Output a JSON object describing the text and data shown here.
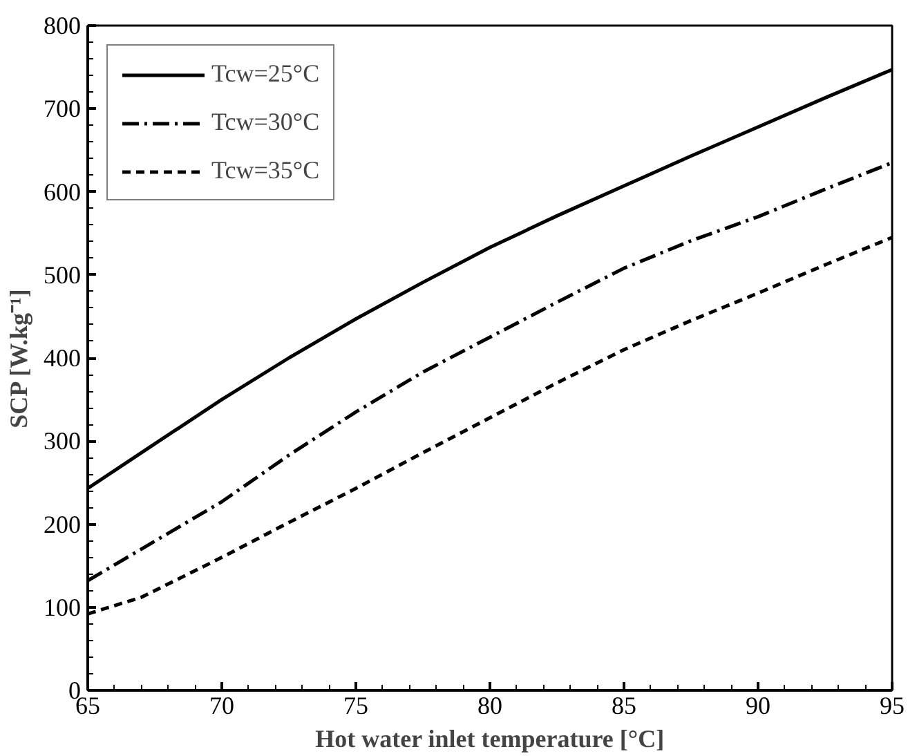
{
  "chart_data": {
    "type": "line",
    "xlabel": "Hot water inlet temperature [°C]",
    "ylabel": "SCP [W.kg⁻¹]",
    "x": [
      65,
      67,
      70,
      72.5,
      75,
      77.5,
      80,
      82.5,
      85,
      87.5,
      90,
      92.5,
      95
    ],
    "series": [
      {
        "name": "Tcw=25°C",
        "color": "#000000",
        "line_style": "solid",
        "values": [
          243,
          286,
          350,
          400,
          447,
          491,
          533,
          571,
          607,
          643,
          678,
          713,
          747
        ]
      },
      {
        "name": "Tcw=30°C",
        "color": "#000000",
        "line_style": "dashdot",
        "values": [
          132,
          170,
          227,
          283,
          335,
          383,
          425,
          467,
          508,
          541,
          570,
          603,
          635
        ]
      },
      {
        "name": "Tcw=35°C",
        "color": "#000000",
        "line_style": "dashed",
        "values": [
          92,
          112,
          160,
          202,
          243,
          286,
          328,
          370,
          410,
          445,
          478,
          512,
          545
        ]
      }
    ],
    "xlim": [
      65,
      95
    ],
    "xticks": [
      65,
      70,
      75,
      80,
      85,
      90,
      95
    ],
    "ylim": [
      0,
      800
    ],
    "yticks": [
      0,
      100,
      200,
      300,
      400,
      500,
      600,
      700,
      800
    ],
    "grid": false,
    "legend": "top left",
    "marker": "none"
  }
}
